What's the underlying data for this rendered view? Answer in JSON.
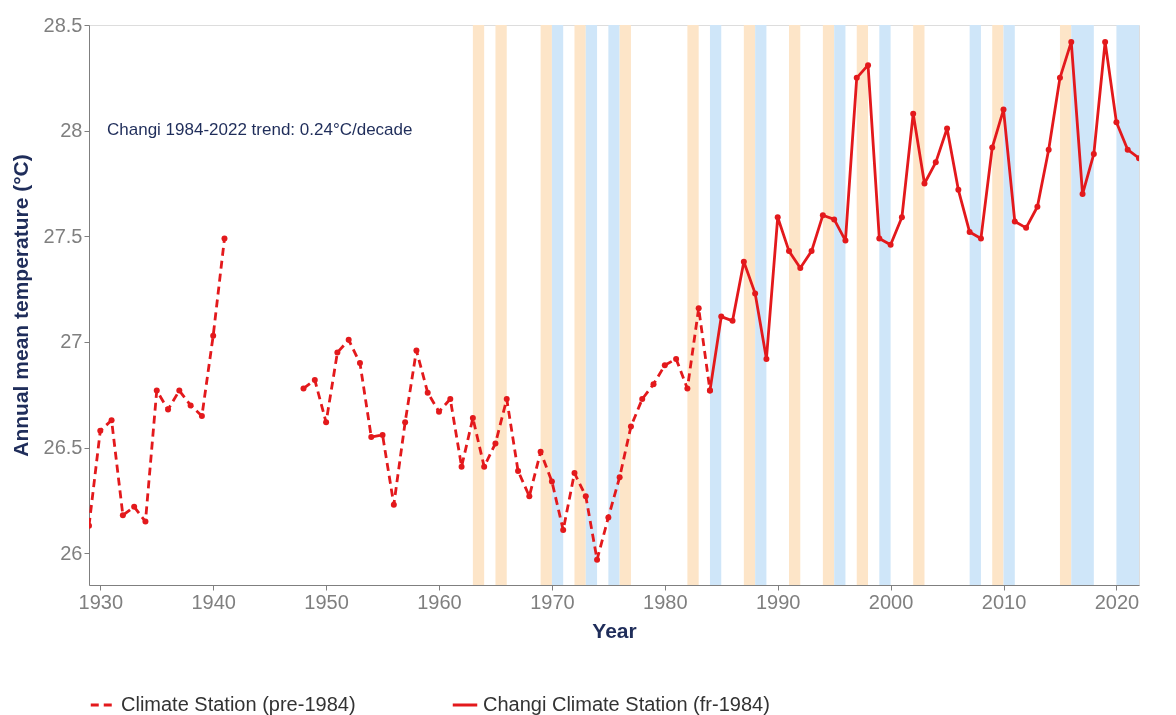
{
  "chart_data": {
    "type": "line",
    "xlabel": "Year",
    "ylabel": "Annual mean temperature (°C)",
    "annotations": [
      "Changi 1984-2022 trend: 0.24°C/decade"
    ],
    "xlim": [
      1929,
      2022
    ],
    "xticks": [
      1930,
      1940,
      1950,
      1960,
      1970,
      1980,
      1990,
      2000,
      2010,
      2020
    ],
    "ylim": [
      25.85,
      28.5
    ],
    "yticks": [
      26,
      26.5,
      27,
      27.5,
      28,
      28.5
    ],
    "grid": false,
    "legend": "bottom",
    "marker": "circle",
    "series": [
      {
        "name": "Climate Station (pre-1984)",
        "color": "#e3191c",
        "line_style": "dashed",
        "x": [
          1929,
          1930,
          1931,
          1932,
          1933,
          1934,
          1935,
          1936,
          1937,
          1938,
          1939,
          1940,
          1941,
          1942,
          1943,
          1944,
          1945,
          1946,
          1947,
          1948,
          1949,
          1950,
          1951,
          1952,
          1953,
          1954,
          1955,
          1956,
          1957,
          1958,
          1959,
          1960,
          1961,
          1962,
          1963,
          1964,
          1965,
          1966,
          1967,
          1968,
          1969,
          1970,
          1971,
          1972,
          1973,
          1974,
          1975,
          1976,
          1977,
          1978,
          1979,
          1980,
          1981,
          1982,
          1983,
          1984
        ],
        "values": [
          26.13,
          26.58,
          26.63,
          26.18,
          26.22,
          26.15,
          26.77,
          26.68,
          26.77,
          26.7,
          26.65,
          27.03,
          27.49,
          null,
          null,
          null,
          null,
          null,
          null,
          26.78,
          26.82,
          26.62,
          26.95,
          27.01,
          26.9,
          26.55,
          26.56,
          26.23,
          26.62,
          26.96,
          26.76,
          26.67,
          26.73,
          26.41,
          26.64,
          26.41,
          26.52,
          26.73,
          26.39,
          26.27,
          26.48,
          26.34,
          26.11,
          26.38,
          26.27,
          25.97,
          26.17,
          26.36,
          26.6,
          26.73,
          26.8,
          26.89,
          26.92,
          26.78,
          27.16,
          26.77
        ]
      },
      {
        "name": "Changi Climate Station (fr-1984)",
        "color": "#e3191c",
        "line_style": "solid",
        "x": [
          1984,
          1985,
          1986,
          1987,
          1988,
          1989,
          1990,
          1991,
          1992,
          1993,
          1994,
          1995,
          1996,
          1997,
          1998,
          1999,
          2000,
          2001,
          2002,
          2003,
          2004,
          2005,
          2006,
          2007,
          2008,
          2009,
          2010,
          2011,
          2012,
          2013,
          2014,
          2015,
          2016,
          2017,
          2018,
          2019,
          2020,
          2021,
          2022
        ],
        "values": [
          26.77,
          27.12,
          27.1,
          27.38,
          27.23,
          26.92,
          27.59,
          27.43,
          27.35,
          27.43,
          27.6,
          27.58,
          27.48,
          28.25,
          28.31,
          27.49,
          27.46,
          27.59,
          28.08,
          27.75,
          27.85,
          28.01,
          27.72,
          27.52,
          27.49,
          27.92,
          28.1,
          27.57,
          27.54,
          27.64,
          27.91,
          28.25,
          28.42,
          27.7,
          27.89,
          28.42,
          28.04,
          27.91,
          27.87
        ]
      }
    ],
    "bands": [
      {
        "axis": "x",
        "from": 1963,
        "to": 1964,
        "color": "#fde5c8"
      },
      {
        "axis": "x",
        "from": 1965,
        "to": 1966,
        "color": "#fde5c8"
      },
      {
        "axis": "x",
        "from": 1969,
        "to": 1970,
        "color": "#fde5c8"
      },
      {
        "axis": "x",
        "from": 1970,
        "to": 1971,
        "color": "#cfe6f9"
      },
      {
        "axis": "x",
        "from": 1972,
        "to": 1973,
        "color": "#fde5c8"
      },
      {
        "axis": "x",
        "from": 1973,
        "to": 1974,
        "color": "#cfe6f9"
      },
      {
        "axis": "x",
        "from": 1975,
        "to": 1976,
        "color": "#cfe6f9"
      },
      {
        "axis": "x",
        "from": 1976,
        "to": 1977,
        "color": "#fde5c8"
      },
      {
        "axis": "x",
        "from": 1982,
        "to": 1983,
        "color": "#fde5c8"
      },
      {
        "axis": "x",
        "from": 1984,
        "to": 1985,
        "color": "#cfe6f9"
      },
      {
        "axis": "x",
        "from": 1987,
        "to": 1988,
        "color": "#fde5c8"
      },
      {
        "axis": "x",
        "from": 1988,
        "to": 1989,
        "color": "#cfe6f9"
      },
      {
        "axis": "x",
        "from": 1991,
        "to": 1992,
        "color": "#fde5c8"
      },
      {
        "axis": "x",
        "from": 1994,
        "to": 1995,
        "color": "#fde5c8"
      },
      {
        "axis": "x",
        "from": 1995,
        "to": 1996,
        "color": "#cfe6f9"
      },
      {
        "axis": "x",
        "from": 1997,
        "to": 1998,
        "color": "#fde5c8"
      },
      {
        "axis": "x",
        "from": 1999,
        "to": 2000,
        "color": "#cfe6f9"
      },
      {
        "axis": "x",
        "from": 2002,
        "to": 2003,
        "color": "#fde5c8"
      },
      {
        "axis": "x",
        "from": 2007,
        "to": 2008,
        "color": "#cfe6f9"
      },
      {
        "axis": "x",
        "from": 2009,
        "to": 2010,
        "color": "#fde5c8"
      },
      {
        "axis": "x",
        "from": 2010,
        "to": 2011,
        "color": "#cfe6f9"
      },
      {
        "axis": "x",
        "from": 2015,
        "to": 2016,
        "color": "#fde5c8"
      },
      {
        "axis": "x",
        "from": 2016,
        "to": 2018,
        "color": "#cfe6f9"
      },
      {
        "axis": "x",
        "from": 2020,
        "to": 2022,
        "color": "#cfe6f9"
      }
    ]
  }
}
